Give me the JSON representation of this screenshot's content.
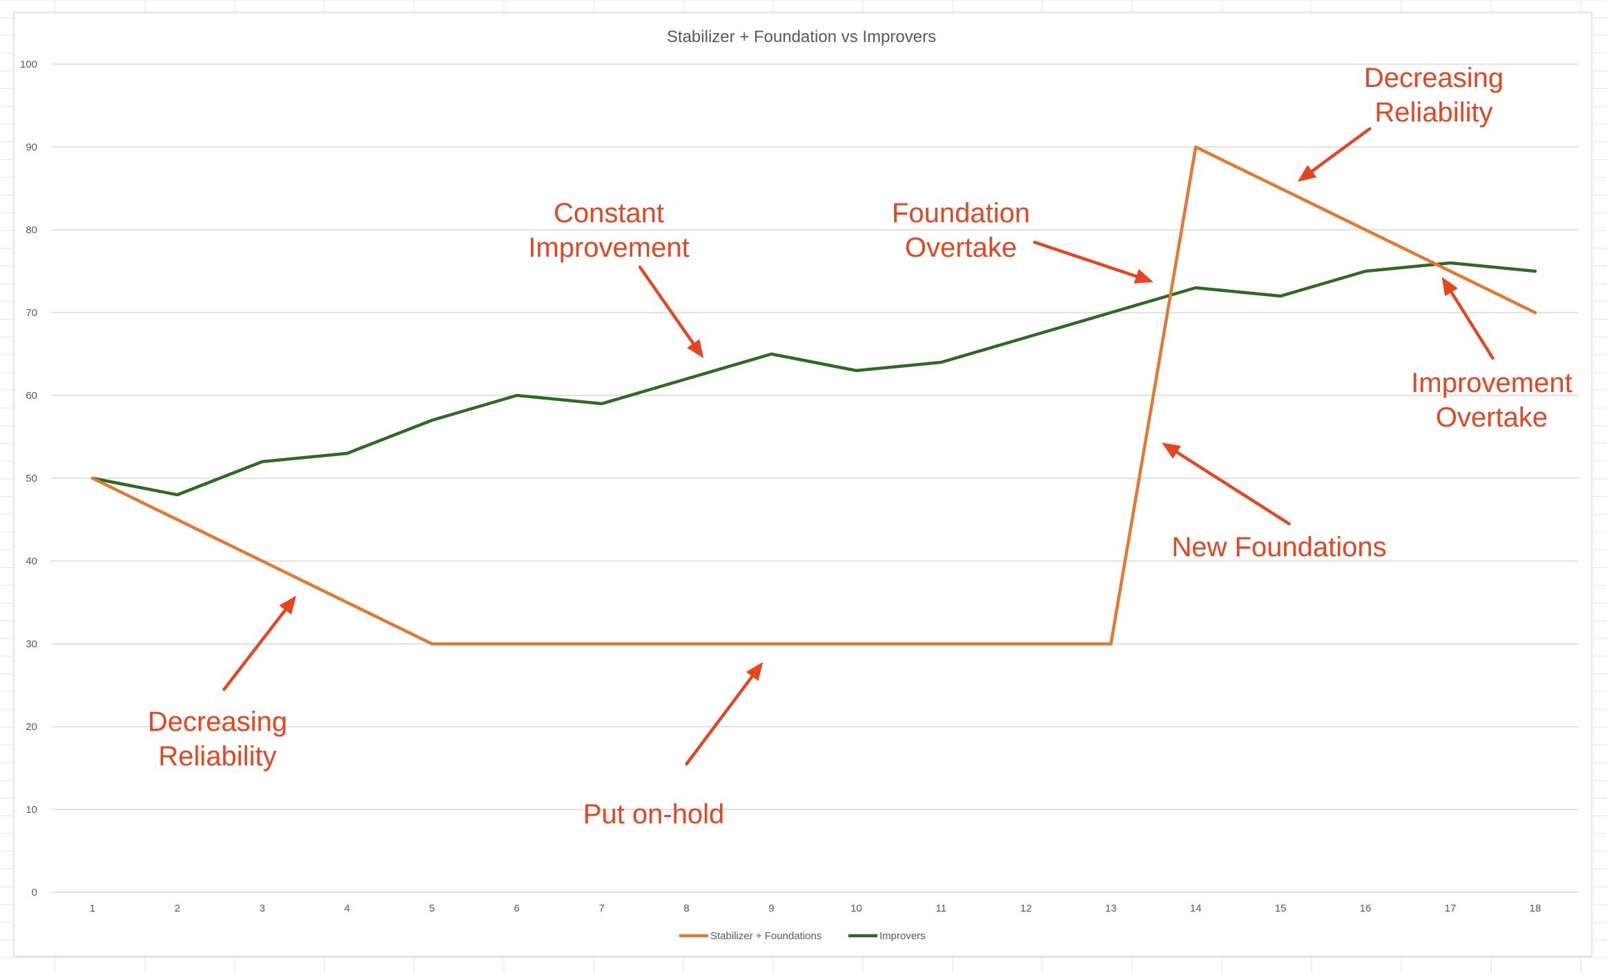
{
  "chart_data": {
    "type": "line",
    "title": "Stabilizer + Foundation vs Improvers",
    "xlabel": "",
    "ylabel": "",
    "x": [
      1,
      2,
      3,
      4,
      5,
      6,
      7,
      8,
      9,
      10,
      11,
      12,
      13,
      14,
      15,
      16,
      17,
      18
    ],
    "ylim": [
      0,
      100
    ],
    "yticks": [
      0,
      10,
      20,
      30,
      40,
      50,
      60,
      70,
      80,
      90,
      100
    ],
    "grid": true,
    "legend": "bottom",
    "series": [
      {
        "name": "Stabilizer + Foundations",
        "color": "#e8762d",
        "values": [
          50,
          45,
          40,
          35,
          30,
          30,
          30,
          30,
          30,
          30,
          30,
          30,
          30,
          90,
          85,
          80,
          75,
          70
        ]
      },
      {
        "name": "Improvers",
        "color": "#2e6b22",
        "values": [
          50,
          48,
          52,
          53,
          57,
          60,
          59,
          62,
          65,
          63,
          64,
          67,
          70,
          73,
          72,
          75,
          76,
          75
        ]
      }
    ],
    "annotations": [
      {
        "id": "decreasing-reliability-left",
        "lines": [
          "Decreasing",
          "Reliability"
        ],
        "arrow_from": [
          2.55,
          24.5
        ],
        "arrow_to": [
          3.4,
          35.8
        ]
      },
      {
        "id": "put-on-hold",
        "lines": [
          "Put on-hold"
        ],
        "arrow_from": [
          8.0,
          15.5
        ],
        "arrow_to": [
          8.9,
          27.8
        ]
      },
      {
        "id": "constant-improvement",
        "lines": [
          "Constant",
          "Improvement"
        ],
        "arrow_from": [
          7.45,
          75.5
        ],
        "arrow_to": [
          8.2,
          64.5
        ]
      },
      {
        "id": "foundation-overtake",
        "lines": [
          "Foundation",
          "Overtake"
        ],
        "arrow_from": [
          12.1,
          78.5
        ],
        "arrow_to": [
          13.5,
          73.7
        ]
      },
      {
        "id": "new-foundations",
        "lines": [
          "New Foundations"
        ],
        "arrow_from": [
          15.1,
          44.5
        ],
        "arrow_to": [
          13.6,
          54.3
        ]
      },
      {
        "id": "decreasing-reliability-right",
        "lines": [
          "Decreasing",
          "Reliability"
        ],
        "arrow_from": [
          16.05,
          92.2
        ],
        "arrow_to": [
          15.2,
          85.8
        ]
      },
      {
        "id": "improvement-overtake",
        "lines": [
          "Improvement",
          "Overtake"
        ],
        "arrow_from": [
          17.5,
          64.5
        ],
        "arrow_to": [
          16.9,
          74.3
        ]
      }
    ]
  }
}
